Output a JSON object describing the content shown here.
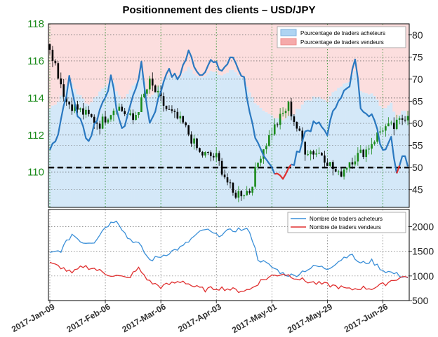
{
  "title": "Positionnement des clients – USD/JPY",
  "chart_data": [
    {
      "type": "line",
      "panel": "top",
      "title": "Positionnement des clients – USD/JPY",
      "x_tick_labels": [
        "2017-Jan-09",
        "2017-Feb-06",
        "2017-Mar-06",
        "2017-Apr-03",
        "2017-May-01",
        "2017-May-29",
        "2017-Jun-26"
      ],
      "x_tick_index": [
        0,
        20,
        40,
        60,
        80,
        100,
        120
      ],
      "num_days": 130,
      "left_axis": {
        "label": "",
        "ticks": [
          110,
          112,
          114,
          116,
          118
        ],
        "range": [
          108.1,
          118.0
        ]
      },
      "right_axis": {
        "label": "",
        "ticks": [
          45,
          50,
          55,
          60,
          65,
          70,
          75,
          80
        ],
        "range": [
          41,
          82.5
        ]
      },
      "reference_line": {
        "value_pct": 50,
        "style": "dashed"
      },
      "legend": {
        "placement": "top-right",
        "entries": [
          {
            "label": "Pourcentage de traders acheteurs",
            "color": "#aed4f2"
          },
          {
            "label": "Pourcentage de traders vendeurs",
            "color": "#f5aaaa"
          }
        ]
      },
      "price_anchors": [
        {
          "i": 0,
          "v": 116.8
        },
        {
          "i": 6,
          "v": 113.8
        },
        {
          "i": 12,
          "v": 113.2
        },
        {
          "i": 18,
          "v": 112.6
        },
        {
          "i": 24,
          "v": 113.6
        },
        {
          "i": 30,
          "v": 112.8
        },
        {
          "i": 36,
          "v": 114.8
        },
        {
          "i": 42,
          "v": 113.4
        },
        {
          "i": 48,
          "v": 112.6
        },
        {
          "i": 54,
          "v": 111.0
        },
        {
          "i": 60,
          "v": 110.8
        },
        {
          "i": 66,
          "v": 108.8
        },
        {
          "i": 72,
          "v": 109.0
        },
        {
          "i": 76,
          "v": 111.0
        },
        {
          "i": 80,
          "v": 112.2
        },
        {
          "i": 86,
          "v": 113.6
        },
        {
          "i": 92,
          "v": 111.2
        },
        {
          "i": 98,
          "v": 111.0
        },
        {
          "i": 104,
          "v": 109.8
        },
        {
          "i": 108,
          "v": 110.6
        },
        {
          "i": 114,
          "v": 111.2
        },
        {
          "i": 120,
          "v": 112.4
        },
        {
          "i": 124,
          "v": 112.4
        },
        {
          "i": 129,
          "v": 113.2
        }
      ],
      "long_pct_anchors": [
        {
          "i": 0,
          "v": 54
        },
        {
          "i": 3,
          "v": 58
        },
        {
          "i": 7,
          "v": 70
        },
        {
          "i": 10,
          "v": 62
        },
        {
          "i": 14,
          "v": 56
        },
        {
          "i": 18,
          "v": 63
        },
        {
          "i": 22,
          "v": 70
        },
        {
          "i": 26,
          "v": 58
        },
        {
          "i": 30,
          "v": 66
        },
        {
          "i": 33,
          "v": 73
        },
        {
          "i": 36,
          "v": 60
        },
        {
          "i": 39,
          "v": 65
        },
        {
          "i": 42,
          "v": 72
        },
        {
          "i": 46,
          "v": 70
        },
        {
          "i": 50,
          "v": 76
        },
        {
          "i": 54,
          "v": 71
        },
        {
          "i": 58,
          "v": 74
        },
        {
          "i": 62,
          "v": 72
        },
        {
          "i": 66,
          "v": 75
        },
        {
          "i": 70,
          "v": 70
        },
        {
          "i": 74,
          "v": 56
        },
        {
          "i": 77,
          "v": 52
        },
        {
          "i": 80,
          "v": 50
        },
        {
          "i": 84,
          "v": 48
        },
        {
          "i": 88,
          "v": 51
        },
        {
          "i": 92,
          "v": 58
        },
        {
          "i": 96,
          "v": 60
        },
        {
          "i": 100,
          "v": 58
        },
        {
          "i": 104,
          "v": 66
        },
        {
          "i": 108,
          "v": 68
        },
        {
          "i": 110,
          "v": 75
        },
        {
          "i": 112,
          "v": 64
        },
        {
          "i": 116,
          "v": 62
        },
        {
          "i": 120,
          "v": 54
        },
        {
          "i": 123,
          "v": 57
        },
        {
          "i": 125,
          "v": 49
        },
        {
          "i": 127,
          "v": 53
        },
        {
          "i": 129,
          "v": 51
        }
      ]
    },
    {
      "type": "line",
      "panel": "bottom",
      "right_axis": {
        "label": "",
        "ticks": [
          500,
          1000,
          1500,
          2000
        ],
        "range": [
          500,
          2350
        ]
      },
      "legend": {
        "placement": "top-right",
        "entries": [
          {
            "label": "Nombre de traders acheteurs",
            "color": "#3a8fd8"
          },
          {
            "label": "Nombre de traders vendeurs",
            "color": "#e03030"
          }
        ]
      },
      "series": [
        {
          "name": "Nombre de traders acheteurs",
          "color": "#3a8fd8",
          "anchors": [
            {
              "i": 0,
              "v": 1450
            },
            {
              "i": 4,
              "v": 1520
            },
            {
              "i": 8,
              "v": 1850
            },
            {
              "i": 12,
              "v": 1680
            },
            {
              "i": 16,
              "v": 1700
            },
            {
              "i": 20,
              "v": 2000
            },
            {
              "i": 24,
              "v": 2150
            },
            {
              "i": 28,
              "v": 1780
            },
            {
              "i": 32,
              "v": 1650
            },
            {
              "i": 36,
              "v": 1320
            },
            {
              "i": 40,
              "v": 1400
            },
            {
              "i": 44,
              "v": 1500
            },
            {
              "i": 48,
              "v": 1600
            },
            {
              "i": 52,
              "v": 1800
            },
            {
              "i": 56,
              "v": 1950
            },
            {
              "i": 60,
              "v": 1820
            },
            {
              "i": 64,
              "v": 1900
            },
            {
              "i": 68,
              "v": 1950
            },
            {
              "i": 72,
              "v": 1920
            },
            {
              "i": 75,
              "v": 1350
            },
            {
              "i": 80,
              "v": 1180
            },
            {
              "i": 84,
              "v": 1050
            },
            {
              "i": 88,
              "v": 1000
            },
            {
              "i": 92,
              "v": 1120
            },
            {
              "i": 96,
              "v": 1200
            },
            {
              "i": 100,
              "v": 1150
            },
            {
              "i": 104,
              "v": 1300
            },
            {
              "i": 108,
              "v": 1450
            },
            {
              "i": 112,
              "v": 1250
            },
            {
              "i": 116,
              "v": 1300
            },
            {
              "i": 120,
              "v": 1120
            },
            {
              "i": 124,
              "v": 1050
            },
            {
              "i": 129,
              "v": 970
            }
          ]
        },
        {
          "name": "Nombre de traders vendeurs",
          "color": "#e03030",
          "anchors": [
            {
              "i": 0,
              "v": 1250
            },
            {
              "i": 4,
              "v": 1180
            },
            {
              "i": 8,
              "v": 1050
            },
            {
              "i": 12,
              "v": 1200
            },
            {
              "i": 16,
              "v": 1150
            },
            {
              "i": 20,
              "v": 1050
            },
            {
              "i": 24,
              "v": 1000
            },
            {
              "i": 28,
              "v": 950
            },
            {
              "i": 32,
              "v": 1150
            },
            {
              "i": 36,
              "v": 880
            },
            {
              "i": 40,
              "v": 780
            },
            {
              "i": 44,
              "v": 850
            },
            {
              "i": 48,
              "v": 900
            },
            {
              "i": 52,
              "v": 780
            },
            {
              "i": 56,
              "v": 720
            },
            {
              "i": 60,
              "v": 760
            },
            {
              "i": 64,
              "v": 740
            },
            {
              "i": 68,
              "v": 700
            },
            {
              "i": 72,
              "v": 720
            },
            {
              "i": 76,
              "v": 900
            },
            {
              "i": 80,
              "v": 1000
            },
            {
              "i": 84,
              "v": 1050
            },
            {
              "i": 88,
              "v": 980
            },
            {
              "i": 92,
              "v": 900
            },
            {
              "i": 96,
              "v": 850
            },
            {
              "i": 100,
              "v": 820
            },
            {
              "i": 104,
              "v": 780
            },
            {
              "i": 108,
              "v": 720
            },
            {
              "i": 112,
              "v": 760
            },
            {
              "i": 116,
              "v": 750
            },
            {
              "i": 120,
              "v": 820
            },
            {
              "i": 124,
              "v": 930
            },
            {
              "i": 129,
              "v": 1000
            }
          ]
        }
      ]
    }
  ],
  "colors": {
    "price_axis_text": "#1a8a1a",
    "long_line": "#2a78c0",
    "short_line": "#e03030",
    "long_fill": "#d4e8f8",
    "short_fill": "#fcdede",
    "candle_up": "#1a8a1a",
    "candle_down": "#000000"
  }
}
